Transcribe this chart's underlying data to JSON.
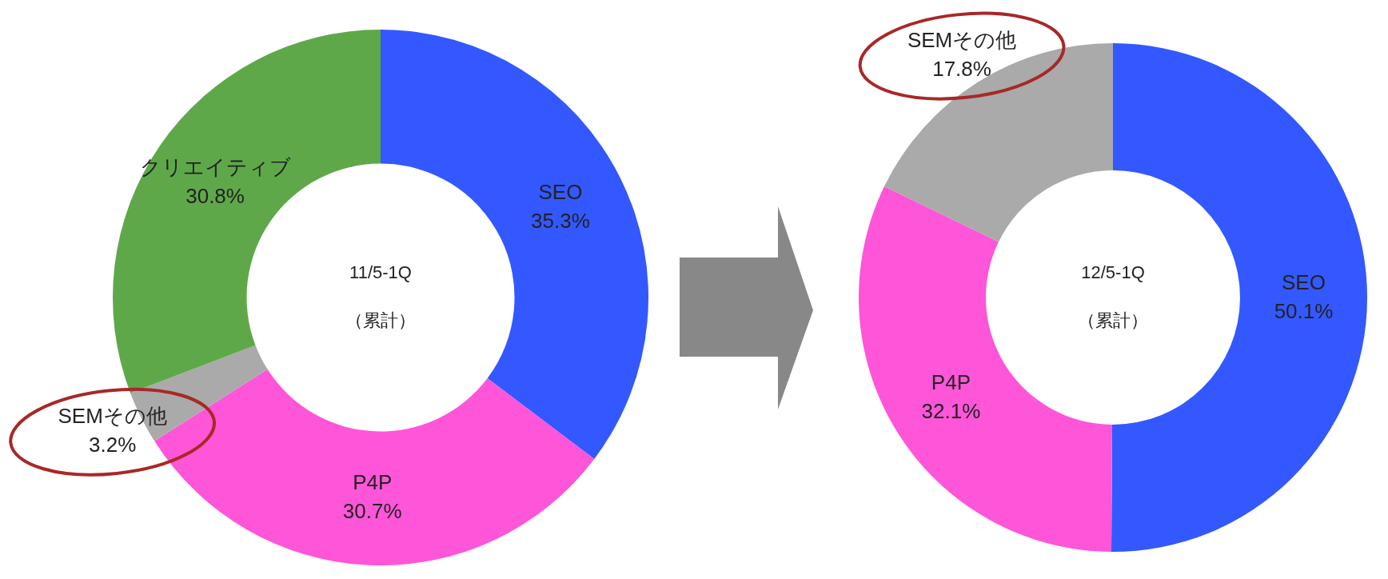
{
  "chart_data": [
    {
      "type": "donut",
      "title": "11/5-1Q",
      "subtitle": "（累計）",
      "categories": [
        "SEO",
        "P4P",
        "SEMその他",
        "クリエイティブ"
      ],
      "values": [
        35.3,
        30.7,
        3.2,
        30.8
      ],
      "colors": [
        "#3358ff",
        "#ff55d8",
        "#aaaaaa",
        "#5fa84a"
      ],
      "value_labels": [
        "35.3%",
        "30.7%",
        "3.2%",
        "30.8%"
      ]
    },
    {
      "type": "donut",
      "title": "12/5-1Q",
      "subtitle": "（累計）",
      "categories": [
        "SEO",
        "P4P",
        "SEMその他"
      ],
      "values": [
        50.1,
        32.1,
        17.8
      ],
      "colors": [
        "#3358ff",
        "#ff55d8",
        "#aaaaaa"
      ],
      "value_labels": [
        "50.1%",
        "32.1%",
        "17.8%"
      ]
    }
  ]
}
